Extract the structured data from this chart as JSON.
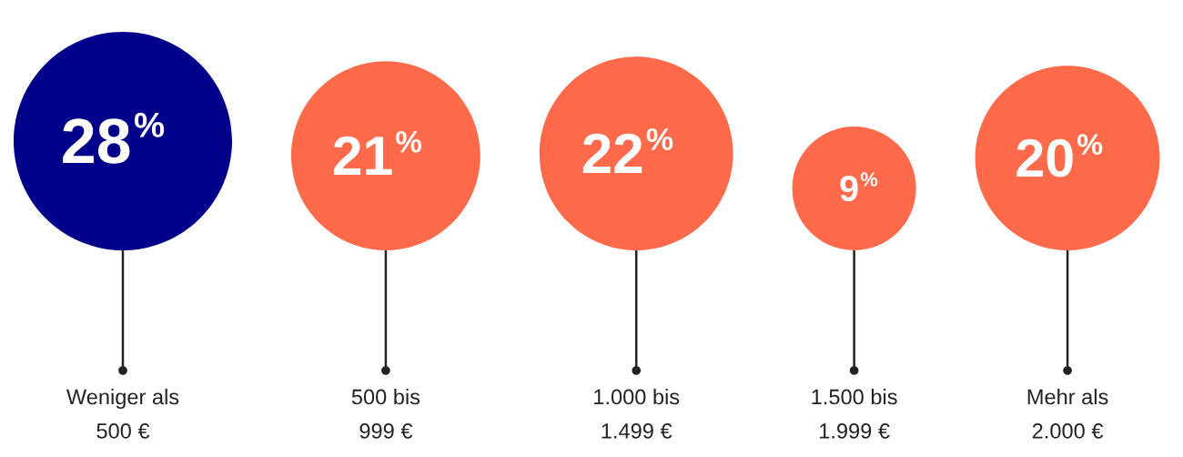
{
  "chart_data": {
    "type": "other",
    "categories": [
      "Weniger als\n500 €",
      "500 bis\n999 €",
      "1.000 bis\n1.499 €",
      "1.500 bis\n1.999 €",
      "Mehr als\n2.000 €"
    ],
    "values": [
      28,
      21,
      22,
      9,
      20
    ],
    "value_labels": [
      "28%",
      "21%",
      "22%",
      "9%",
      "20%"
    ],
    "colors": [
      "#00008b",
      "#ff6b4a",
      "#ff6b4a",
      "#ff6b4a",
      "#ff6b4a"
    ]
  }
}
